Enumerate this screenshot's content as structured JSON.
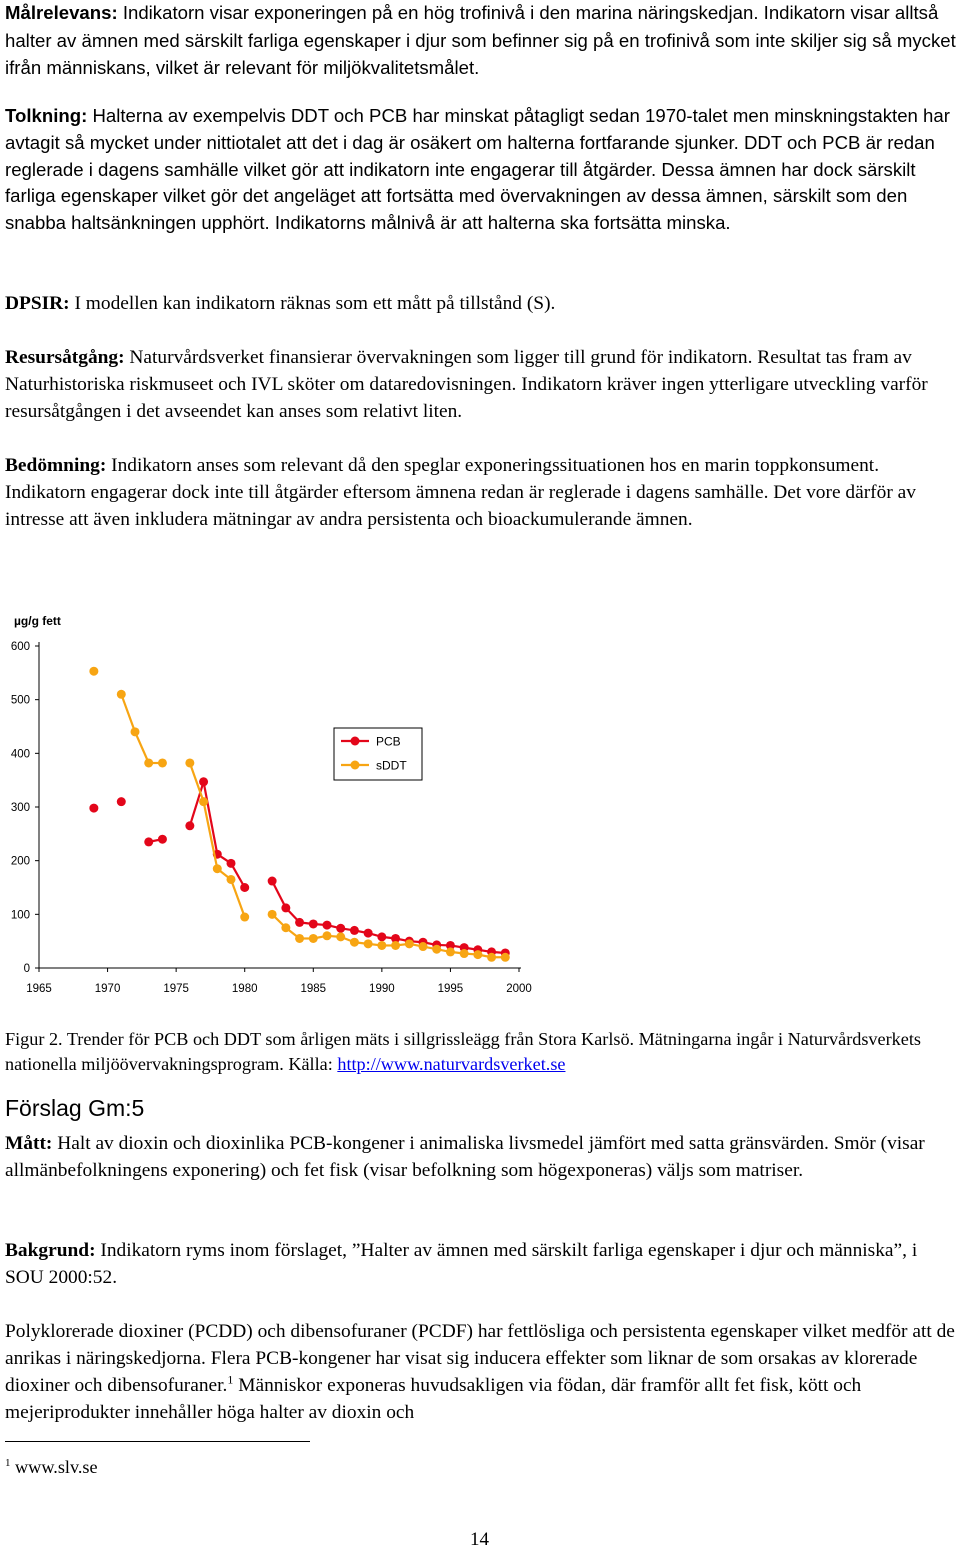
{
  "paragraphs": {
    "malrelevans": {
      "label": "Målrelevans:",
      "text": " Indikatorn visar exponeringen på en hög trofinivå i den marina näringskedjan. Indikatorn visar alltså halter av ämnen med särskilt farliga egenskaper i djur som befinner sig på en trofinivå som inte skiljer sig så mycket ifrån människans, vilket är relevant för miljökvalitetsmålet."
    },
    "tolkning": {
      "label": "Tolkning:",
      "text": " Halterna av exempelvis DDT och PCB har minskat påtagligt sedan 1970-talet men minskningstakten har avtagit så mycket under nittiotalet att det i dag är osäkert om halterna fortfarande sjunker. DDT och PCB är redan reglerade i dagens samhälle vilket gör att indikatorn inte engagerar till åtgärder. Dessa ämnen har dock särskilt farliga egenskaper vilket gör det angeläget att fortsätta med övervakningen av dessa ämnen, särskilt som den snabba haltsänkningen upphört. Indikatorns målnivå är att halterna ska fortsätta minska."
    },
    "dpsir": {
      "label": "DPSIR:",
      "text": " I modellen kan indikatorn räknas som ett mått på tillstånd (S)."
    },
    "resursatgang": {
      "label": "Resursåtgång:",
      "text": " Naturvårdsverket finansierar övervakningen som ligger till grund för indikatorn. Resultat tas fram av Naturhistoriska riskmuseet och IVL sköter om dataredovisningen. Indikatorn kräver ingen ytterligare utveckling varför resursåtgången i det avseendet kan anses som relativt liten."
    },
    "bedomning": {
      "label": "Bedömning:",
      "text": " Indikatorn anses som relevant då den speglar exponeringssituationen hos en marin toppkonsument. Indikatorn engagerar dock inte till åtgärder eftersom ämnena redan är reglerade i dagens samhälle. Det vore därför av intresse att även inkludera mätningar av andra persistenta och bioackumulerande ämnen."
    }
  },
  "figure_caption": {
    "text": "Figur 2. Trender för PCB och DDT som årligen mäts i sillgrissleägg från Stora Karlsö. Mätningarna ingår i Naturvårdsverkets nationella miljöövervakningsprogram. Källa: ",
    "link": "http://www.naturvardsverket.se"
  },
  "section": {
    "heading": "Förslag Gm:5",
    "matt": {
      "label": "Mått:",
      "text": " Halt av dioxin och dioxinlika PCB-kongener i animaliska livsmedel jämfört med satta gränsvärden. Smör (visar allmänbefolkningens exponering) och fet fisk (visar befolkning som högexponeras) väljs som matriser."
    },
    "bakgrund": {
      "label": "Bakgrund:",
      "text": " Indikatorn ryms inom förslaget, ”Halter av ämnen med särskilt farliga egenskaper i djur och människa”, i SOU 2000:52."
    },
    "polyklorerade": {
      "text_before": "Polyklorerade dioxiner (PCDD) och dibensofuraner (PCDF) har fettlösliga och persistenta egenskaper vilket medför att de anrikas i näringskedjorna. Flera PCB-kongener har visat sig inducera effekter som liknar de som orsakas av klorerade dioxiner och dibensofuraner.",
      "footnote_ref": "1",
      "text_after": " Människor exponeras huvudsakligen via födan, där framför allt fet fisk, kött och mejeriprodukter innehåller höga halter av dioxin och"
    }
  },
  "footnote": {
    "number": "1",
    "text": " www.slv.se"
  },
  "page_number": "14",
  "chart_data": {
    "type": "line",
    "ylabel": "µg/g fett",
    "ylim": [
      0,
      600
    ],
    "xlim": [
      1965,
      2000
    ],
    "x_ticks": [
      "1965",
      "1970",
      "1975",
      "1980",
      "1985",
      "1990",
      "1995",
      "2000"
    ],
    "y_ticks": [
      "0",
      "100",
      "200",
      "300",
      "400",
      "500",
      "600"
    ],
    "grid": false,
    "legend_position": "right",
    "series": [
      {
        "name": "PCB",
        "color": "#e3061a",
        "points": [
          [
            1969,
            298
          ],
          [
            1971,
            310
          ],
          [
            1973,
            235
          ],
          [
            1974,
            240
          ],
          [
            1976,
            265
          ],
          [
            1977,
            347
          ],
          [
            1978,
            212
          ],
          [
            1979,
            195
          ],
          [
            1980,
            150
          ],
          [
            1982,
            162
          ],
          [
            1983,
            112
          ],
          [
            1984,
            85
          ],
          [
            1985,
            82
          ],
          [
            1986,
            80
          ],
          [
            1987,
            74
          ],
          [
            1988,
            70
          ],
          [
            1989,
            65
          ],
          [
            1990,
            58
          ],
          [
            1991,
            55
          ],
          [
            1992,
            50
          ],
          [
            1993,
            48
          ],
          [
            1994,
            43
          ],
          [
            1995,
            42
          ],
          [
            1996,
            38
          ],
          [
            1997,
            34
          ],
          [
            1998,
            30
          ],
          [
            1999,
            28
          ]
        ]
      },
      {
        "name": "sDDT",
        "color": "#f7a513",
        "points": [
          [
            1969,
            553
          ],
          [
            1971,
            510
          ],
          [
            1972,
            440
          ],
          [
            1973,
            382
          ],
          [
            1974,
            382
          ],
          [
            1976,
            382
          ],
          [
            1977,
            310
          ],
          [
            1978,
            185
          ],
          [
            1979,
            165
          ],
          [
            1980,
            95
          ],
          [
            1982,
            100
          ],
          [
            1983,
            75
          ],
          [
            1984,
            55
          ],
          [
            1985,
            55
          ],
          [
            1986,
            60
          ],
          [
            1987,
            58
          ],
          [
            1988,
            48
          ],
          [
            1989,
            45
          ],
          [
            1990,
            42
          ],
          [
            1991,
            42
          ],
          [
            1992,
            45
          ],
          [
            1993,
            40
          ],
          [
            1994,
            35
          ],
          [
            1995,
            30
          ],
          [
            1996,
            27
          ],
          [
            1997,
            25
          ],
          [
            1998,
            20
          ],
          [
            1999,
            20
          ]
        ]
      }
    ]
  }
}
